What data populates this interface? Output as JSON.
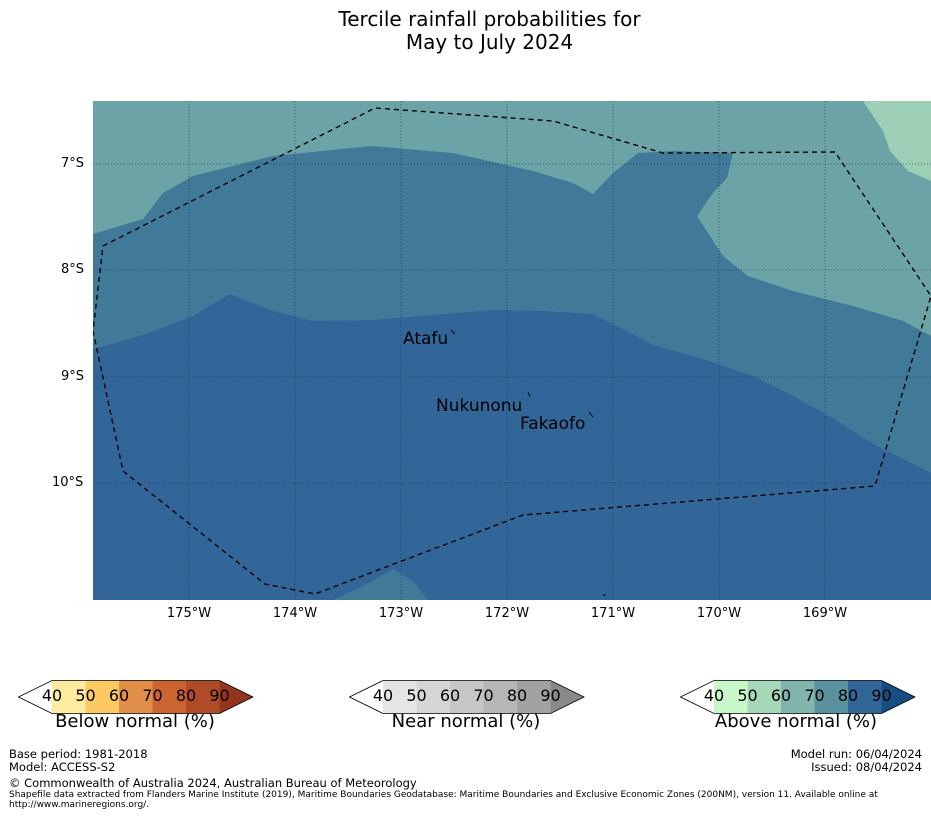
{
  "title": {
    "line1": "Tercile rainfall probabilities for",
    "line2": "May to July 2024"
  },
  "map": {
    "lat_labels": [
      "7°S",
      "8°S",
      "9°S",
      "10°S"
    ],
    "lon_labels": [
      "175°W",
      "174°W",
      "173°W",
      "172°W",
      "171°W",
      "170°W",
      "169°W"
    ],
    "places": [
      "Atafu",
      "Nukunonu",
      "Fakaofo"
    ],
    "colors": {
      "p50": "#6ca3a6",
      "p60": "#9ccfb6",
      "p70": "#417a98",
      "p80": "#336698"
    }
  },
  "colorbars": [
    {
      "label": "Below normal (%)",
      "ticks": [
        "40",
        "50",
        "60",
        "70",
        "80",
        "90"
      ],
      "colors": [
        "#ffffff",
        "#feeba0",
        "#fec863",
        "#e08e48",
        "#cb6431",
        "#b04b28",
        "#93341e"
      ]
    },
    {
      "label": "Near normal (%)",
      "ticks": [
        "40",
        "50",
        "60",
        "70",
        "80",
        "90"
      ],
      "colors": [
        "#ffffff",
        "#e5e5e5",
        "#d6d6d6",
        "#c6c6c6",
        "#b6b6b6",
        "#a2a2a2",
        "#898989"
      ]
    },
    {
      "label": "Above normal (%)",
      "ticks": [
        "40",
        "50",
        "60",
        "70",
        "80",
        "90"
      ],
      "colors": [
        "#ffffff",
        "#c8f8ca",
        "#a6d7b8",
        "#82b4ae",
        "#5a919f",
        "#336698",
        "#174d83"
      ]
    }
  ],
  "footer": {
    "base_period": "Base period: 1981-2018",
    "model": "Model: ACCESS-S2",
    "model_run": "Model run: 06/04/2024",
    "issued": "Issued: 08/04/2024",
    "copyright": "© Commonwealth of Australia 2024, Australian Bureau of Meteorology",
    "shapefile_line1": "Shapefile data extracted from Flanders Marine Institute (2019), Maritime Boundaries Geodatabase: Maritime Boundaries and Exclusive Economic Zones (200NM), version 11. Available online at",
    "shapefile_line2": "http://www.marineregions.org/."
  }
}
